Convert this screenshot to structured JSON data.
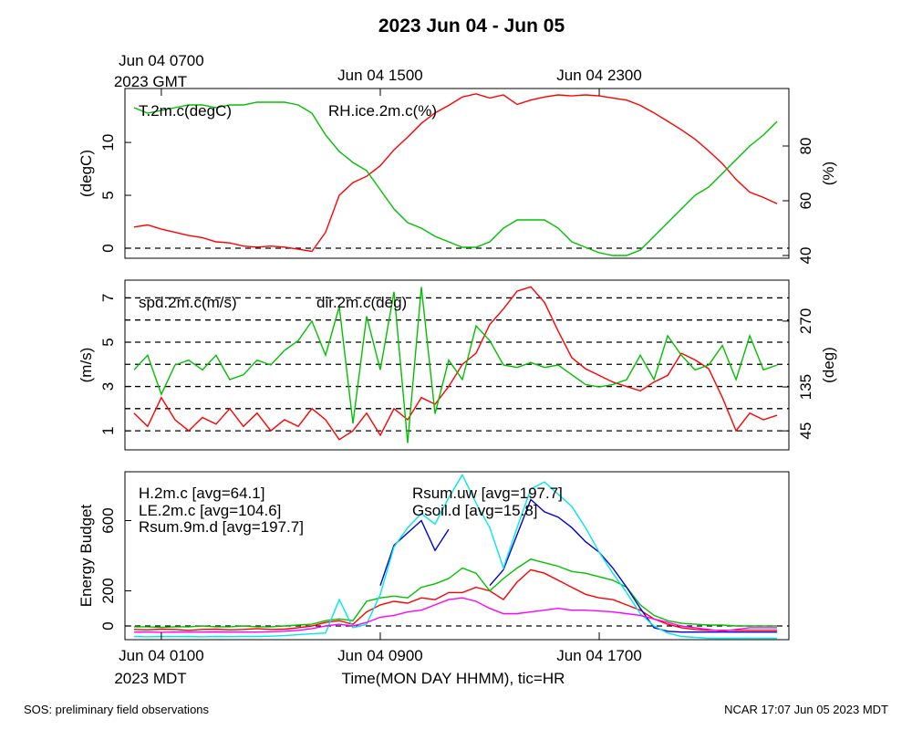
{
  "title": "2023 Jun 04 - Jun 05",
  "footer_left": "SOS: preliminary field observations",
  "footer_right": "NCAR 17:07 Jun 05 2023 MDT",
  "chart_data": [
    {
      "type": "line",
      "ylabel": "(degC)",
      "y2label": "(%)",
      "xlim": [
        -0.33,
        23.93
      ],
      "xticks": [
        {
          "value": 1,
          "label": "Jun 04 0700"
        },
        {
          "value": 9,
          "label": "Jun 04 1500"
        },
        {
          "value": 17,
          "label": "Jun 04 2300"
        }
      ],
      "xtick_unit": "2023 GMT",
      "ylim": [
        -0.95,
        15.1
      ],
      "yticks": [
        0,
        5,
        10
      ],
      "y2lim": [
        39,
        101
      ],
      "y2ticks": [
        40,
        60,
        80
      ],
      "hlines": [
        0
      ],
      "x": [
        0,
        0.5,
        1,
        1.5,
        2,
        2.5,
        3,
        3.5,
        4,
        4.5,
        5,
        5.5,
        6,
        6.5,
        7,
        7.5,
        8,
        8.5,
        9,
        9.5,
        10,
        10.5,
        11,
        11.5,
        12,
        12.5,
        13,
        13.5,
        14,
        14.5,
        15,
        15.5,
        16,
        16.5,
        17,
        17.5,
        18,
        18.5,
        19,
        19.5,
        20,
        20.5,
        21,
        21.5,
        22,
        22.5,
        23,
        23.5
      ],
      "series": [
        {
          "name": "T.2m.c(degC)",
          "color": "#ff0000",
          "values": [
            2,
            2.2,
            1.8,
            1.5,
            1.2,
            1.0,
            0.6,
            0.5,
            0.2,
            0.1,
            0.2,
            0.1,
            -0.1,
            -0.3,
            1.5,
            5,
            6.2,
            6.8,
            7.8,
            9.3,
            10.5,
            11.8,
            12.8,
            13.5,
            14.3,
            14.6,
            14.2,
            14.5,
            13.6,
            14,
            14.3,
            14.5,
            14.4,
            14.5,
            14.4,
            14.2,
            14,
            13.5,
            12.8,
            12,
            11.2,
            10.3,
            9.2,
            8,
            6.5,
            5.3,
            4.8,
            4.2
          ]
        },
        {
          "name": "RH.ice.2m.c(%)",
          "color": "#00c000",
          "axis": "y2",
          "values": [
            94,
            92,
            93,
            94,
            95,
            95,
            94,
            95,
            95,
            96,
            96,
            96,
            95,
            92,
            84,
            78,
            74,
            71,
            64,
            57,
            52,
            50,
            47,
            45,
            43,
            43,
            45,
            50,
            53,
            53,
            53,
            50,
            45,
            43,
            41,
            40,
            40,
            42,
            47,
            52,
            57,
            62,
            65,
            70,
            75,
            80,
            84,
            89
          ]
        }
      ]
    },
    {
      "type": "line",
      "ylabel": "(m/s)",
      "y2label": "(deg)",
      "xlim": [
        -0.33,
        23.93
      ],
      "ylim": [
        0.14,
        7.8
      ],
      "yticks": [
        1,
        3,
        5,
        7
      ],
      "y2lim": [
        6,
        354
      ],
      "y2ticks": [
        45,
        135,
        270
      ],
      "hlines": [
        1,
        2,
        3,
        4,
        5,
        6,
        7
      ],
      "x": [
        0,
        0.5,
        1,
        1.5,
        2,
        2.5,
        3,
        3.5,
        4,
        4.5,
        5,
        5.5,
        6,
        6.5,
        7,
        7.5,
        8,
        8.5,
        9,
        9.5,
        10,
        10.5,
        11,
        11.5,
        12,
        12.5,
        13,
        13.5,
        14,
        14.5,
        15,
        15.5,
        16,
        16.5,
        17,
        17.5,
        18,
        18.5,
        19,
        19.5,
        20,
        20.5,
        21,
        21.5,
        22,
        22.5,
        23,
        23.5
      ],
      "series": [
        {
          "name": "spd.2m.c(m/s)",
          "color": "#ff0000",
          "values": [
            1.8,
            1.2,
            2.5,
            1.5,
            1,
            1.6,
            1.3,
            2,
            1.2,
            1.8,
            1,
            1.5,
            1.2,
            2,
            1.5,
            0.6,
            1,
            1.8,
            0.8,
            2,
            1.5,
            2.5,
            2.2,
            3,
            4,
            4.5,
            5.8,
            6.5,
            7.3,
            7.5,
            6.8,
            5.5,
            4.3,
            3.8,
            3.5,
            3.2,
            3,
            2.8,
            3.2,
            3.5,
            4.5,
            4.2,
            3.8,
            2.5,
            1,
            1.8,
            1.5,
            1.7
          ]
        },
        {
          "name": "dir.2m.c(deg)",
          "color": "#00c000",
          "axis": "y2",
          "values": [
            170,
            200,
            120,
            180,
            190,
            170,
            200,
            150,
            160,
            190,
            180,
            210,
            230,
            270,
            200,
            300,
            60,
            280,
            170,
            330,
            20,
            340,
            80,
            190,
            150,
            260,
            230,
            180,
            175,
            185,
            175,
            180,
            160,
            140,
            135,
            140,
            150,
            200,
            150,
            240,
            200,
            170,
            180,
            220,
            150,
            240,
            170,
            180
          ]
        }
      ]
    },
    {
      "type": "line",
      "ylabel": "Energy Budget",
      "xlabel": "Time(MON DAY HHMM), tic=HR",
      "xlim": [
        -0.33,
        23.93
      ],
      "xticks": [
        {
          "value": 1,
          "label": "Jun 04 0100"
        },
        {
          "value": 9,
          "label": "Jun 04 0900"
        },
        {
          "value": 17,
          "label": "Jun 04 1700"
        }
      ],
      "xtick_unit": "2023 MDT",
      "ylim": [
        -78,
        878
      ],
      "yticks": [
        0,
        200,
        600
      ],
      "hlines": [
        0
      ],
      "x": [
        0,
        0.5,
        1,
        1.5,
        2,
        2.5,
        3,
        3.5,
        4,
        4.5,
        5,
        5.5,
        6,
        6.5,
        7,
        7.5,
        8,
        8.5,
        9,
        9.5,
        10,
        10.5,
        11,
        11.5,
        12,
        12.5,
        13,
        13.5,
        14,
        14.5,
        15,
        15.5,
        16,
        16.5,
        17,
        17.5,
        18,
        18.5,
        19,
        19.5,
        20,
        20.5,
        21,
        21.5,
        22,
        22.5,
        23,
        23.5
      ],
      "series": [
        {
          "name": "H.2m.c [avg=64.1]",
          "color": "#ff0000",
          "values": [
            -20,
            -22,
            -18,
            -20,
            -25,
            -20,
            -18,
            -22,
            -20,
            -15,
            -20,
            -18,
            -10,
            0,
            20,
            30,
            10,
            80,
            120,
            140,
            130,
            160,
            150,
            190,
            190,
            220,
            200,
            150,
            250,
            320,
            300,
            260,
            220,
            180,
            160,
            150,
            120,
            90,
            40,
            10,
            -10,
            -20,
            -25,
            -25,
            -25,
            -25,
            -25,
            -25
          ]
        },
        {
          "name": "LE.2m.c [avg=104.6]",
          "color": "#00c000",
          "values": [
            -5,
            -5,
            -8,
            -5,
            -5,
            0,
            -5,
            -5,
            0,
            -5,
            -5,
            0,
            5,
            10,
            30,
            40,
            30,
            140,
            160,
            170,
            160,
            220,
            240,
            270,
            330,
            300,
            200,
            270,
            330,
            380,
            360,
            340,
            310,
            300,
            280,
            260,
            220,
            120,
            60,
            30,
            15,
            10,
            5,
            5,
            0,
            0,
            0,
            0
          ]
        },
        {
          "name": "Rsum.9m.d [avg=197.7]",
          "color": "#0000d0",
          "values": [
            null,
            null,
            null,
            null,
            null,
            null,
            null,
            null,
            null,
            null,
            null,
            null,
            null,
            null,
            null,
            null,
            null,
            null,
            230,
            460,
            530,
            600,
            430,
            550,
            null,
            null,
            230,
            320,
            520,
            720,
            650,
            620,
            560,
            480,
            420,
            330,
            220,
            100,
            -10,
            -30,
            -35,
            -35,
            -35,
            -35,
            -35,
            -35,
            -35,
            -35
          ]
        },
        {
          "name": "Rsum.uw [avg=197.7]",
          "color": "#00e8e8",
          "values": [
            -60,
            -62,
            -60,
            -61,
            -60,
            -62,
            -60,
            -61,
            -60,
            -60,
            -58,
            -55,
            -50,
            -45,
            -40,
            150,
            -10,
            10,
            180,
            450,
            560,
            640,
            580,
            730,
            860,
            700,
            560,
            330,
            560,
            780,
            820,
            750,
            680,
            560,
            420,
            300,
            190,
            70,
            0,
            -40,
            -60,
            -65,
            -70,
            -70,
            -70,
            -70,
            -70,
            -70
          ]
        },
        {
          "name": "Gsoil.d [avg=15.8]",
          "color": "#ff00ff",
          "values": [
            -35,
            -35,
            -36,
            -35,
            -35,
            -35,
            -34,
            -35,
            -35,
            -35,
            -33,
            -30,
            -25,
            -15,
            0,
            10,
            0,
            20,
            50,
            60,
            80,
            90,
            120,
            150,
            160,
            140,
            100,
            70,
            70,
            80,
            90,
            100,
            90,
            90,
            85,
            80,
            70,
            60,
            40,
            20,
            0,
            -10,
            -20,
            -30,
            -20,
            -10,
            -10,
            -10
          ]
        }
      ]
    }
  ]
}
